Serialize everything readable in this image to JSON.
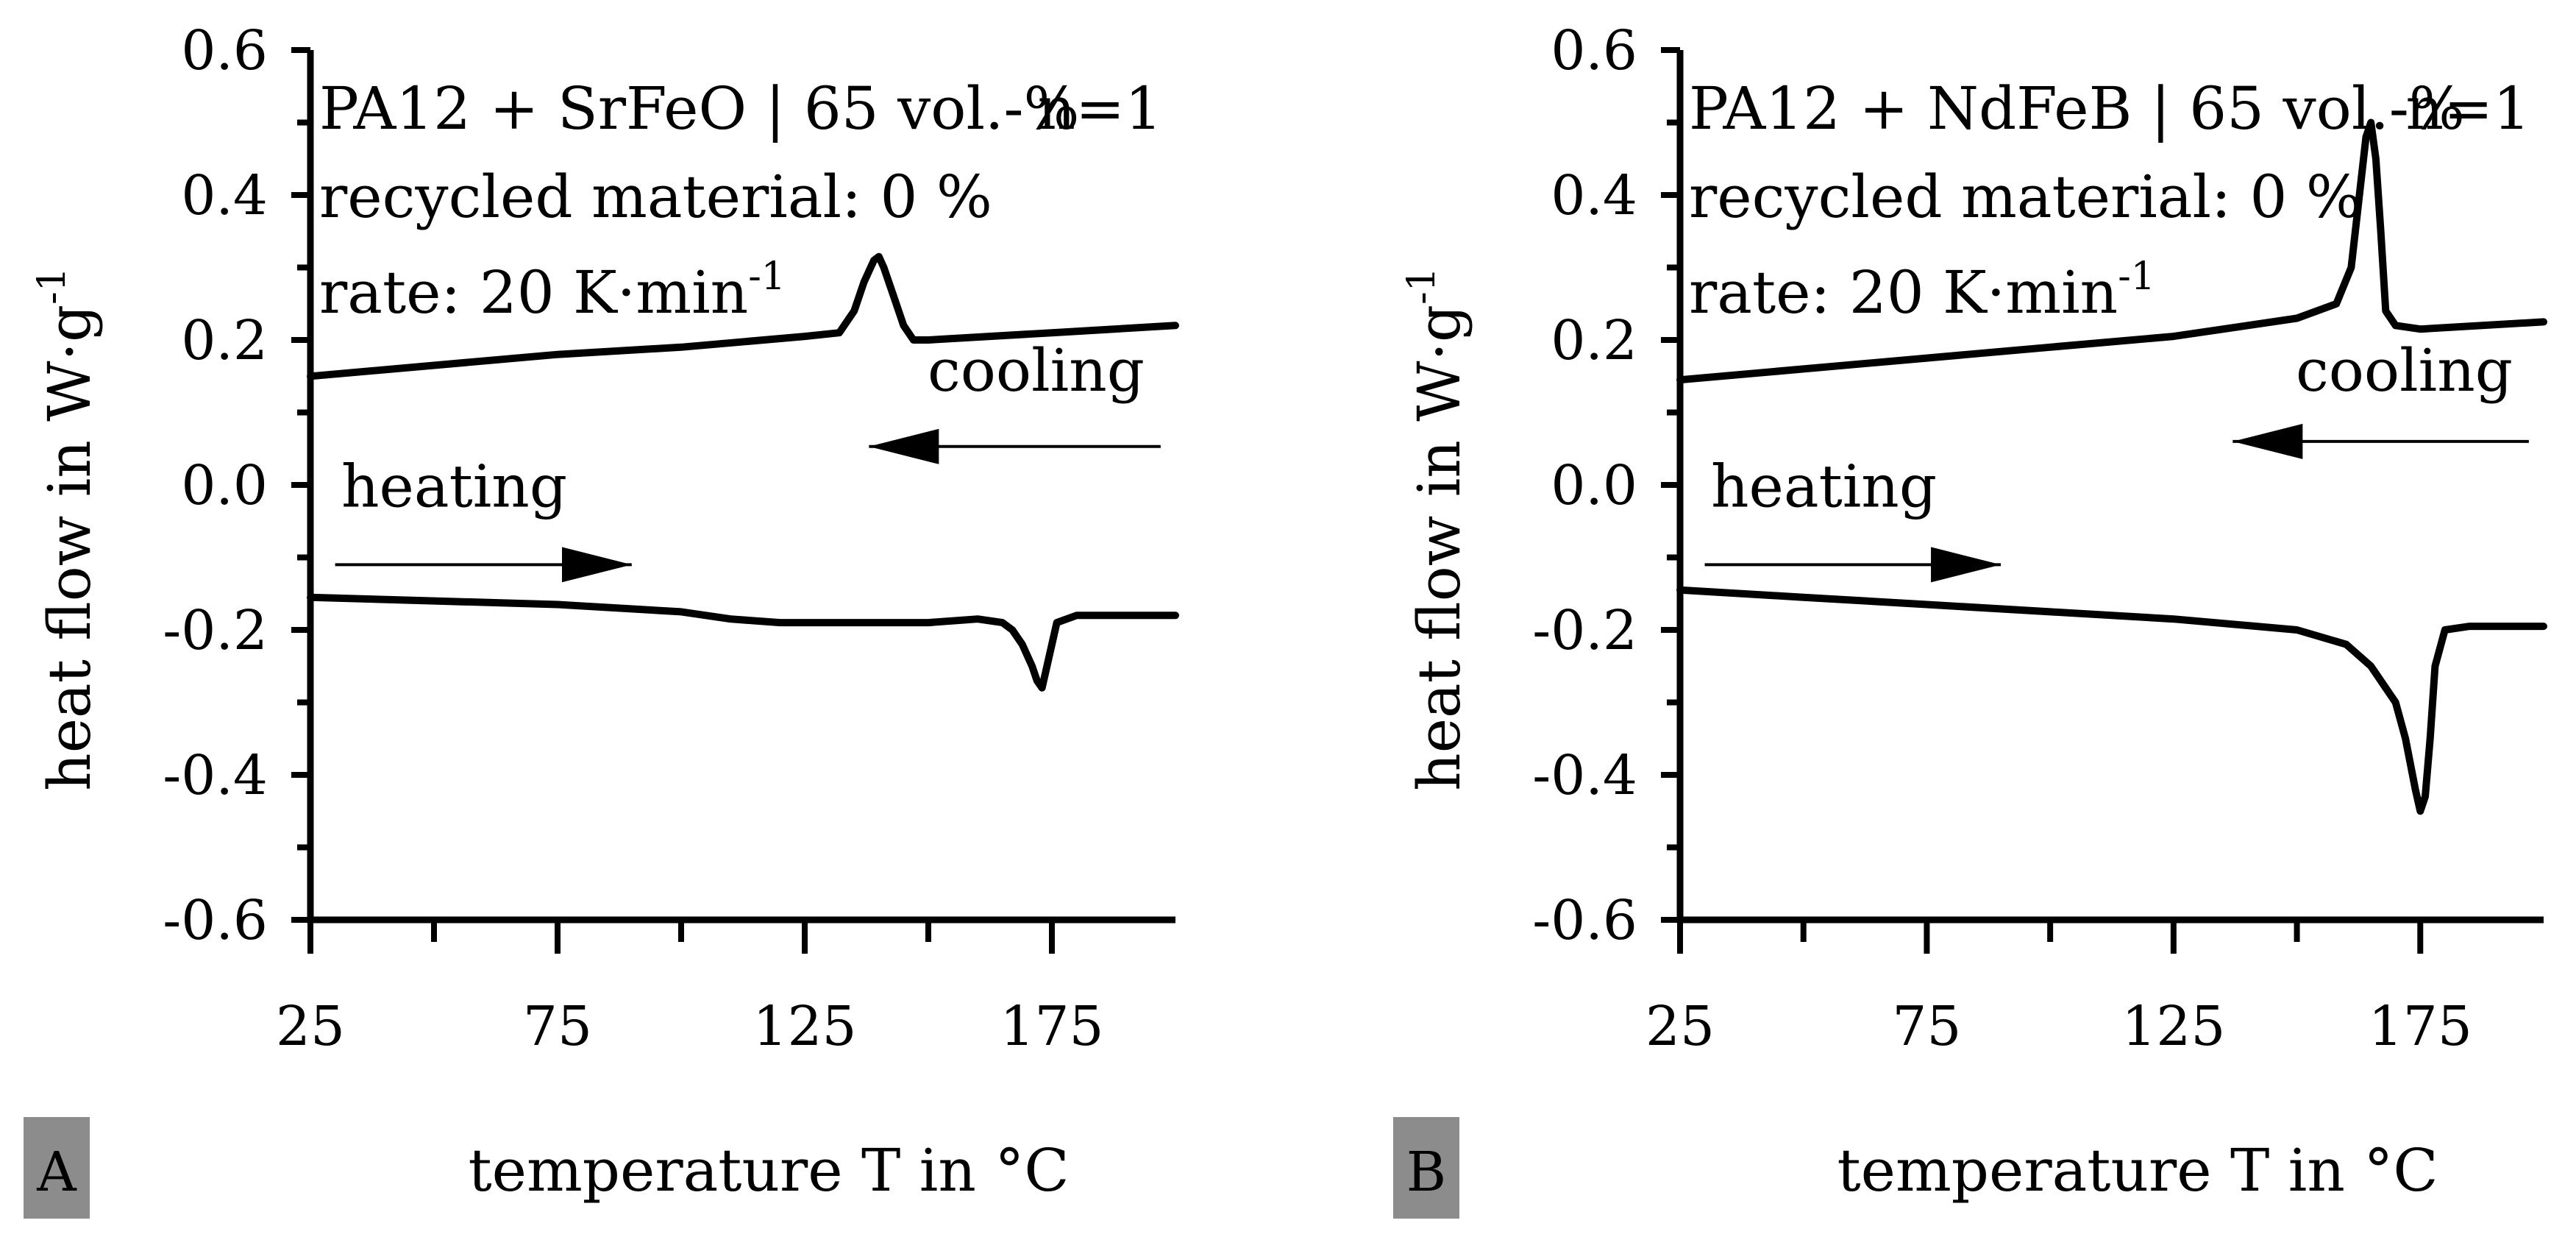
{
  "chart_data": [
    {
      "type": "line",
      "panel_label": "A",
      "xlabel": "temperature T in °C",
      "ylabel_main": "heat flow in W·g",
      "ylabel_sup": "-1",
      "xlim": [
        25,
        200
      ],
      "ylim": [
        -0.6,
        0.6
      ],
      "x_ticks": [
        25,
        75,
        125,
        175
      ],
      "x_tick_labels": [
        "25",
        "75",
        "125",
        "175"
      ],
      "y_ticks": [
        0.6,
        0.4,
        0.2,
        0.0,
        -0.2,
        -0.4,
        -0.6
      ],
      "y_tick_labels": [
        "0.6",
        "0.4",
        "0.2",
        "0.0",
        "-0.2",
        "-0.4",
        "-0.6"
      ],
      "annotations": {
        "material": "PA12 + SrFeO | 65 vol.-%",
        "n": "n=1",
        "recycled": "recycled material: 0 %",
        "rate": "rate: 20 K·min",
        "rate_sup": "-1",
        "cooling": "cooling",
        "heating": "heating"
      },
      "series": [
        {
          "name": "cooling",
          "x": [
            25,
            50,
            75,
            100,
            125,
            132,
            135,
            137,
            139,
            140,
            141,
            143,
            145,
            147,
            150,
            175,
            200
          ],
          "y": [
            0.15,
            0.165,
            0.18,
            0.19,
            0.205,
            0.21,
            0.24,
            0.28,
            0.31,
            0.315,
            0.3,
            0.26,
            0.22,
            0.2,
            0.2,
            0.21,
            0.22
          ]
        },
        {
          "name": "heating",
          "x": [
            25,
            50,
            75,
            100,
            110,
            120,
            125,
            150,
            160,
            165,
            167,
            169,
            171,
            172,
            173,
            174,
            176,
            180,
            200
          ],
          "y": [
            -0.155,
            -0.16,
            -0.165,
            -0.175,
            -0.185,
            -0.19,
            -0.19,
            -0.19,
            -0.185,
            -0.19,
            -0.2,
            -0.22,
            -0.25,
            -0.27,
            -0.28,
            -0.25,
            -0.19,
            -0.18,
            -0.18
          ]
        }
      ],
      "arrows": [
        {
          "name": "cooling",
          "x_from": 197,
          "x_to": 138,
          "y": 0.053
        },
        {
          "name": "heating",
          "x_from": 30,
          "x_to": 90,
          "y": -0.11
        }
      ]
    },
    {
      "type": "line",
      "panel_label": "B",
      "xlabel": "temperature T in °C",
      "ylabel_main": "heat flow in W·g",
      "ylabel_sup": "-1",
      "xlim": [
        25,
        200
      ],
      "ylim": [
        -0.6,
        0.6
      ],
      "x_ticks": [
        25,
        75,
        125,
        175
      ],
      "x_tick_labels": [
        "25",
        "75",
        "125",
        "175"
      ],
      "y_ticks": [
        0.6,
        0.4,
        0.2,
        0.0,
        -0.2,
        -0.4,
        -0.6
      ],
      "y_tick_labels": [
        "0.6",
        "0.4",
        "0.2",
        "0.0",
        "-0.2",
        "-0.4",
        "-0.6"
      ],
      "annotations": {
        "material": "PA12 + NdFeB | 65 vol.-%",
        "n": "n=1",
        "recycled": "recycled material: 0 %",
        "rate": "rate: 20 K·min",
        "rate_sup": "-1",
        "cooling": "cooling",
        "heating": "heating"
      },
      "series": [
        {
          "name": "cooling",
          "x": [
            25,
            50,
            75,
            100,
            125,
            150,
            158,
            161,
            163,
            164,
            165,
            166,
            167,
            168,
            170,
            175,
            200
          ],
          "y": [
            0.145,
            0.16,
            0.175,
            0.19,
            0.205,
            0.23,
            0.25,
            0.3,
            0.42,
            0.48,
            0.5,
            0.45,
            0.35,
            0.24,
            0.22,
            0.215,
            0.225
          ]
        },
        {
          "name": "heating",
          "x": [
            25,
            50,
            75,
            100,
            125,
            150,
            160,
            165,
            170,
            172,
            174,
            175,
            176,
            177,
            178,
            180,
            185,
            200
          ],
          "y": [
            -0.145,
            -0.155,
            -0.165,
            -0.175,
            -0.185,
            -0.2,
            -0.22,
            -0.25,
            -0.3,
            -0.35,
            -0.42,
            -0.45,
            -0.43,
            -0.35,
            -0.25,
            -0.2,
            -0.195,
            -0.195
          ]
        }
      ],
      "arrows": [
        {
          "name": "cooling",
          "x_from": 197,
          "x_to": 137,
          "y": 0.06
        },
        {
          "name": "heating",
          "x_from": 30,
          "x_to": 90,
          "y": -0.11
        }
      ]
    }
  ]
}
